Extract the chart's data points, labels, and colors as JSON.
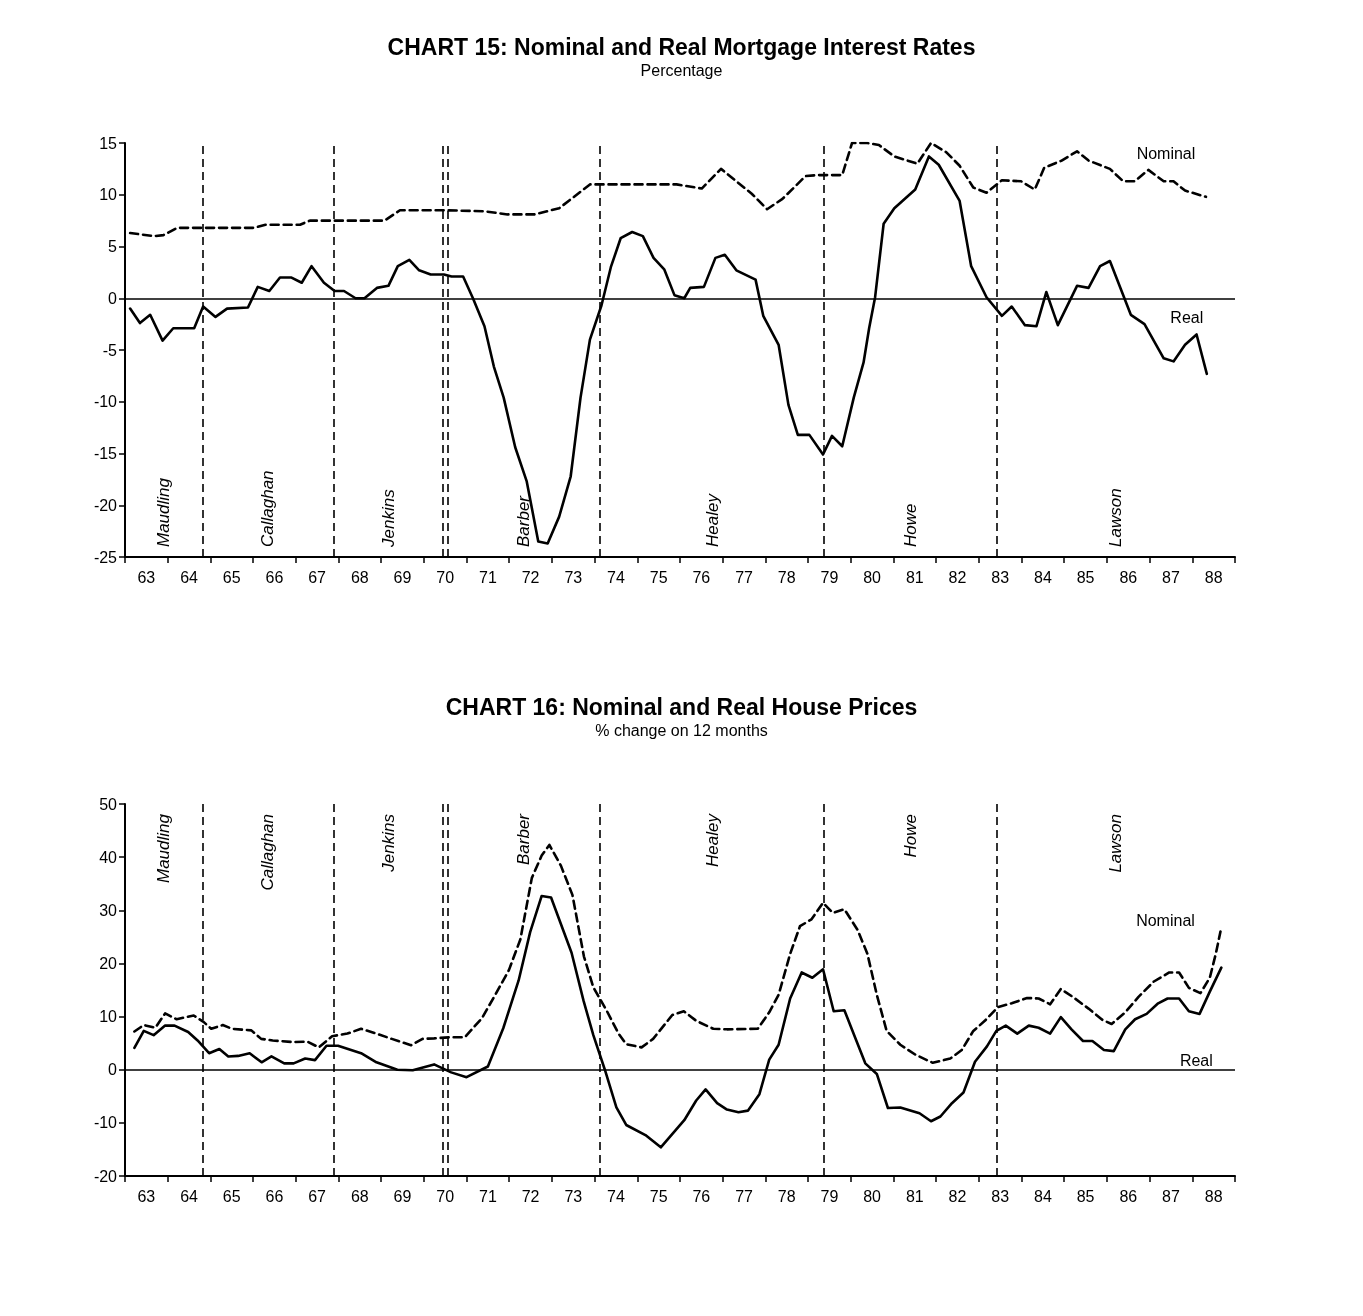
{
  "chart_data": [
    {
      "type": "line",
      "title": "CHART 15: Nominal and Real Mortgage Interest Rates",
      "subtitle": "Percentage",
      "xlim": [
        63,
        89
      ],
      "ylim": [
        -25,
        15
      ],
      "yticks": [
        -25,
        -20,
        -15,
        -10,
        -5,
        0,
        5,
        10,
        15
      ],
      "marker": "none",
      "xticks": [
        {
          "value": 63,
          "label": null
        },
        {
          "value": 63.5,
          "label": "63"
        },
        {
          "value": 64,
          "label": null
        },
        {
          "value": 64.5,
          "label": "64"
        },
        {
          "value": 65,
          "label": null
        },
        {
          "value": 65.5,
          "label": "65"
        },
        {
          "value": 66,
          "label": null
        },
        {
          "value": 66.5,
          "label": "66"
        },
        {
          "value": 67,
          "label": null
        },
        {
          "value": 67.5,
          "label": "67"
        },
        {
          "value": 68,
          "label": null
        },
        {
          "value": 68.5,
          "label": "68"
        },
        {
          "value": 69,
          "label": null
        },
        {
          "value": 69.5,
          "label": "69"
        },
        {
          "value": 70,
          "label": null
        },
        {
          "value": 70.5,
          "label": "70"
        },
        {
          "value": 71,
          "label": null
        },
        {
          "value": 71.5,
          "label": "71"
        },
        {
          "value": 72,
          "label": null
        },
        {
          "value": 72.5,
          "label": "72"
        },
        {
          "value": 73,
          "label": null
        },
        {
          "value": 73.5,
          "label": "73"
        },
        {
          "value": 74,
          "label": null
        },
        {
          "value": 74.5,
          "label": "74"
        },
        {
          "value": 75,
          "label": null
        },
        {
          "value": 75.5,
          "label": "75"
        },
        {
          "value": 76,
          "label": null
        },
        {
          "value": 76.5,
          "label": "76"
        },
        {
          "value": 77,
          "label": null
        },
        {
          "value": 77.5,
          "label": "77"
        },
        {
          "value": 78,
          "label": null
        },
        {
          "value": 78.5,
          "label": "78"
        },
        {
          "value": 79,
          "label": null
        },
        {
          "value": 79.5,
          "label": "79"
        },
        {
          "value": 80,
          "label": null
        },
        {
          "value": 80.5,
          "label": "80"
        },
        {
          "value": 81,
          "label": null
        },
        {
          "value": 81.5,
          "label": "81"
        },
        {
          "value": 82,
          "label": null
        },
        {
          "value": 82.5,
          "label": "82"
        },
        {
          "value": 83,
          "label": null
        },
        {
          "value": 83.5,
          "label": "83"
        },
        {
          "value": 84,
          "label": null
        },
        {
          "value": 84.5,
          "label": "84"
        },
        {
          "value": 85,
          "label": null
        },
        {
          "value": 85.5,
          "label": "85"
        },
        {
          "value": 86,
          "label": null
        },
        {
          "value": 86.5,
          "label": "86"
        },
        {
          "value": 87,
          "label": null
        },
        {
          "value": 87.5,
          "label": "87"
        },
        {
          "value": 88,
          "label": null
        },
        {
          "value": 88.5,
          "label": "88"
        },
        {
          "value": 89,
          "label": null
        }
      ],
      "series": [
        {
          "name": "Nominal",
          "color": "#000000",
          "line_style": "dashed",
          "x": [
            63.12,
            63.68,
            63.9,
            64.22,
            64.62,
            64.85,
            66.02,
            66.29,
            67.1,
            67.33,
            69.08,
            69.44,
            69.89,
            70.52,
            71.42,
            71.96,
            72.59,
            73.17,
            73.58,
            73.89,
            74.3,
            75.92,
            76.51,
            76.96,
            77.32,
            77.68,
            78.04,
            78.4,
            78.94,
            79.22,
            79.8,
            80.03,
            80.39,
            80.66,
            81.02,
            81.56,
            81.88,
            82.24,
            82.55,
            82.87,
            83.18,
            83.54,
            83.99,
            84.31,
            84.53,
            84.94,
            85.3,
            85.57,
            86.07,
            86.38,
            86.65,
            86.97,
            87.33,
            87.56,
            87.83,
            88.32
          ],
          "values": [
            6.3,
            6.0,
            6.1,
            6.8,
            6.8,
            6.8,
            6.8,
            7.1,
            7.1,
            7.5,
            7.5,
            8.5,
            8.5,
            8.5,
            8.4,
            8.1,
            8.1,
            8.7,
            10.0,
            11.0,
            11.0,
            11.0,
            10.6,
            12.5,
            11.3,
            10.1,
            8.6,
            9.6,
            11.8,
            11.9,
            11.9,
            15.0,
            15.0,
            14.8,
            13.7,
            13.0,
            15.0,
            14.1,
            12.8,
            10.7,
            10.2,
            11.4,
            11.3,
            10.5,
            12.6,
            13.3,
            14.2,
            13.3,
            12.5,
            11.3,
            11.3,
            12.4,
            11.3,
            11.3,
            10.4,
            9.8
          ]
        },
        {
          "name": "Real",
          "color": "#000000",
          "line_style": "solid",
          "x": [
            63.12,
            63.35,
            63.59,
            63.88,
            64.13,
            64.62,
            64.83,
            65.12,
            65.39,
            65.88,
            66.11,
            66.38,
            66.63,
            66.9,
            67.14,
            67.37,
            67.66,
            67.91,
            68.13,
            68.4,
            68.61,
            68.9,
            69.17,
            69.39,
            69.66,
            69.89,
            70.16,
            70.47,
            70.65,
            70.92,
            71.15,
            71.42,
            71.64,
            71.87,
            72.14,
            72.41,
            72.68,
            72.9,
            73.17,
            73.44,
            73.67,
            73.89,
            74.16,
            74.38,
            74.61,
            74.88,
            75.13,
            75.38,
            75.63,
            75.87,
            76.1,
            76.24,
            76.56,
            76.83,
            77.05,
            77.32,
            77.77,
            77.95,
            78.31,
            78.54,
            78.76,
            79.03,
            79.35,
            79.56,
            79.8,
            80.07,
            80.3,
            80.43,
            80.57,
            80.77,
            81.02,
            81.51,
            81.83,
            82.06,
            82.55,
            82.82,
            83.18,
            83.54,
            83.77,
            84.08,
            84.35,
            84.58,
            84.85,
            85.3,
            85.57,
            85.84,
            86.07,
            86.56,
            86.88,
            87.33,
            87.56,
            87.83,
            88.1,
            88.34
          ],
          "values": [
            -1.0,
            -2.4,
            -1.6,
            -4.1,
            -2.9,
            -2.9,
            -0.8,
            -1.8,
            -1.0,
            -0.9,
            1.1,
            0.7,
            2.0,
            2.0,
            1.5,
            3.1,
            1.5,
            0.7,
            0.7,
            0,
            0,
            1.0,
            1.2,
            3.1,
            3.7,
            2.7,
            2.3,
            2.3,
            2.1,
            2.1,
            0,
            -2.7,
            -6.6,
            -9.6,
            -14.4,
            -17.7,
            -23.5,
            -23.7,
            -21.1,
            -17.2,
            -9.6,
            -4.0,
            -0.7,
            3.0,
            5.8,
            6.4,
            6.0,
            3.9,
            2.8,
            0.3,
            0,
            1.0,
            1.1,
            3.9,
            4.2,
            2.7,
            1.8,
            -1.7,
            -4.5,
            -10.3,
            -13.2,
            -13.2,
            -15.1,
            -13.3,
            -14.3,
            -9.6,
            -6.2,
            -2.9,
            0.1,
            7.2,
            8.7,
            10.5,
            13.7,
            12.9,
            9.4,
            3.1,
            0.1,
            -1.7,
            -0.8,
            -2.6,
            -2.7,
            0.6,
            -2.6,
            1.2,
            1.0,
            3.1,
            3.6,
            -1.6,
            -2.5,
            -5.8,
            -6.1,
            -4.5,
            -3.5,
            -7.3
          ]
        }
      ],
      "ref_lines": [
        {
          "axis": "y",
          "value": 0,
          "line_style": "solid"
        },
        {
          "axis": "x",
          "value": 64.81,
          "line_style": "dashed"
        },
        {
          "axis": "x",
          "value": 67.88,
          "line_style": "dashed"
        },
        {
          "axis": "x",
          "value": 70.45,
          "line_style": "dashed"
        },
        {
          "axis": "x",
          "value": 70.55,
          "line_style": "dashed"
        },
        {
          "axis": "x",
          "value": 74.13,
          "line_style": "dashed"
        },
        {
          "axis": "x",
          "value": 79.37,
          "line_style": "dashed"
        },
        {
          "axis": "x",
          "value": 83.42,
          "line_style": "dashed"
        }
      ],
      "annotations": [
        "Maudling",
        "Callaghan",
        "Jenkins",
        "Barber",
        "Healey",
        "Howe",
        "Lawson"
      ]
    },
    {
      "type": "line",
      "title": "CHART 16: Nominal and Real House Prices",
      "subtitle": "% change on 12 months",
      "xlim": [
        63,
        89
      ],
      "ylim": [
        -20,
        50
      ],
      "yticks": [
        -20,
        -10,
        0,
        10,
        20,
        30,
        40,
        50
      ],
      "marker": "none",
      "xticks": [
        {
          "value": 63,
          "label": null
        },
        {
          "value": 63.5,
          "label": "63"
        },
        {
          "value": 64,
          "label": null
        },
        {
          "value": 64.5,
          "label": "64"
        },
        {
          "value": 65,
          "label": null
        },
        {
          "value": 65.5,
          "label": "65"
        },
        {
          "value": 66,
          "label": null
        },
        {
          "value": 66.5,
          "label": "66"
        },
        {
          "value": 67,
          "label": null
        },
        {
          "value": 67.5,
          "label": "67"
        },
        {
          "value": 68,
          "label": null
        },
        {
          "value": 68.5,
          "label": "68"
        },
        {
          "value": 69,
          "label": null
        },
        {
          "value": 69.5,
          "label": "69"
        },
        {
          "value": 70,
          "label": null
        },
        {
          "value": 70.5,
          "label": "70"
        },
        {
          "value": 71,
          "label": null
        },
        {
          "value": 71.5,
          "label": "71"
        },
        {
          "value": 72,
          "label": null
        },
        {
          "value": 72.5,
          "label": "72"
        },
        {
          "value": 73,
          "label": null
        },
        {
          "value": 73.5,
          "label": "73"
        },
        {
          "value": 74,
          "label": null
        },
        {
          "value": 74.5,
          "label": "74"
        },
        {
          "value": 75,
          "label": null
        },
        {
          "value": 75.5,
          "label": "75"
        },
        {
          "value": 76,
          "label": null
        },
        {
          "value": 76.5,
          "label": "76"
        },
        {
          "value": 77,
          "label": null
        },
        {
          "value": 77.5,
          "label": "77"
        },
        {
          "value": 78,
          "label": null
        },
        {
          "value": 78.5,
          "label": "78"
        },
        {
          "value": 79,
          "label": null
        },
        {
          "value": 79.5,
          "label": "79"
        },
        {
          "value": 80,
          "label": null
        },
        {
          "value": 80.5,
          "label": "80"
        },
        {
          "value": 81,
          "label": null
        },
        {
          "value": 81.5,
          "label": "81"
        },
        {
          "value": 82,
          "label": null
        },
        {
          "value": 82.5,
          "label": "82"
        },
        {
          "value": 83,
          "label": null
        },
        {
          "value": 83.5,
          "label": "83"
        },
        {
          "value": 84,
          "label": null
        },
        {
          "value": 84.5,
          "label": "84"
        },
        {
          "value": 85,
          "label": null
        },
        {
          "value": 85.5,
          "label": "85"
        },
        {
          "value": 86,
          "label": null
        },
        {
          "value": 86.5,
          "label": "86"
        },
        {
          "value": 87,
          "label": null
        },
        {
          "value": 87.5,
          "label": "87"
        },
        {
          "value": 88,
          "label": null
        },
        {
          "value": 88.5,
          "label": "88"
        },
        {
          "value": 89,
          "label": null
        }
      ],
      "series": [
        {
          "name": "Nominal",
          "color": "#000000",
          "line_style": "dashed",
          "x": [
            63.22,
            63.44,
            63.71,
            63.94,
            64.21,
            64.61,
            64.84,
            65.02,
            65.29,
            65.51,
            65.96,
            66.19,
            66.46,
            66.95,
            67.27,
            67.54,
            67.85,
            68.21,
            68.53,
            68.89,
            69.25,
            69.7,
            69.97,
            70.24,
            70.6,
            70.96,
            71.36,
            71.68,
            71.99,
            72.26,
            72.53,
            72.76,
            72.94,
            73.21,
            73.48,
            73.75,
            73.97,
            74.29,
            74.56,
            74.74,
            75.1,
            75.37,
            75.82,
            76.09,
            76.38,
            76.78,
            77.1,
            77.82,
            78.09,
            78.31,
            78.58,
            78.81,
            79.08,
            79.35,
            79.58,
            79.85,
            80.16,
            80.39,
            80.61,
            80.84,
            81.16,
            81.52,
            81.92,
            82.33,
            82.6,
            82.87,
            83.14,
            83.45,
            83.77,
            84.13,
            84.4,
            84.67,
            84.92,
            85.2,
            85.57,
            85.89,
            86.11,
            86.43,
            86.74,
            87.1,
            87.46,
            87.69,
            87.92,
            88.19,
            88.41,
            88.55,
            88.66
          ],
          "values": [
            7.2,
            8.4,
            7.9,
            10.6,
            9.5,
            10.2,
            9.0,
            7.7,
            8.4,
            7.7,
            7.4,
            5.8,
            5.5,
            5.2,
            5.3,
            4.2,
            6.3,
            6.8,
            7.7,
            6.8,
            5.8,
            4.6,
            5.8,
            5.9,
            6.1,
            6.1,
            9.7,
            14.2,
            18.7,
            24.5,
            36.1,
            40.3,
            42.3,
            38.4,
            32.9,
            21.3,
            15.5,
            11.0,
            6.8,
            4.8,
            4.2,
            5.8,
            10.3,
            11.0,
            9.2,
            7.7,
            7.6,
            7.7,
            10.8,
            14.1,
            21.8,
            27.0,
            28.3,
            31.4,
            29.5,
            30.2,
            26.3,
            21.8,
            14.1,
            7.3,
            4.7,
            2.8,
            1.3,
            2.1,
            3.7,
            7.3,
            9.2,
            11.8,
            12.5,
            13.5,
            13.4,
            12.3,
            15.2,
            13.7,
            11.5,
            9.4,
            8.6,
            10.8,
            13.7,
            16.6,
            18.3,
            18.3,
            15.4,
            14.4,
            17.3,
            21.8,
            26.0
          ]
        },
        {
          "name": "Real",
          "color": "#000000",
          "line_style": "solid",
          "x": [
            63.22,
            63.44,
            63.67,
            63.94,
            64.16,
            64.48,
            64.7,
            64.97,
            65.21,
            65.42,
            65.65,
            65.92,
            66.2,
            66.43,
            66.73,
            66.95,
            67.22,
            67.45,
            67.72,
            67.99,
            68.53,
            68.89,
            69.38,
            69.74,
            70.24,
            70.64,
            71.0,
            71.5,
            71.86,
            72.22,
            72.49,
            72.76,
            72.98,
            73.46,
            73.74,
            73.97,
            74.24,
            74.51,
            74.74,
            75.19,
            75.55,
            76.1,
            76.38,
            76.6,
            76.87,
            77.1,
            77.37,
            77.59,
            77.86,
            78.09,
            78.31,
            78.58,
            78.85,
            79.1,
            79.35,
            79.6,
            79.85,
            80.12,
            80.34,
            80.61,
            80.87,
            81.16,
            81.61,
            81.88,
            82.1,
            82.37,
            82.64,
            82.91,
            83.19,
            83.41,
            83.63,
            83.9,
            84.17,
            84.4,
            84.67,
            84.92,
            85.17,
            85.44,
            85.66,
            85.93,
            86.16,
            86.43,
            86.66,
            86.93,
            87.2,
            87.42,
            87.69,
            87.92,
            88.17,
            88.41,
            88.68
          ],
          "values": [
            4.1,
            7.3,
            6.5,
            8.3,
            8.3,
            7.1,
            5.5,
            3.1,
            3.9,
            2.5,
            2.6,
            3.1,
            1.4,
            2.5,
            1.2,
            1.2,
            2.1,
            1.8,
            4.5,
            4.5,
            3.1,
            1.4,
            0,
            -0.1,
            1.0,
            -0.5,
            -1.4,
            0.6,
            7.8,
            16.8,
            25.9,
            32.7,
            32.4,
            22.0,
            13.0,
            6.5,
            0,
            -7.1,
            -10.4,
            -12.3,
            -14.6,
            -9.5,
            -5.8,
            -3.7,
            -6.3,
            -7.5,
            -8.0,
            -7.7,
            -4.6,
            1.9,
            4.7,
            13.4,
            18.3,
            17.3,
            18.9,
            11.0,
            11.2,
            5.7,
            1.2,
            -0.8,
            -7.2,
            -7.1,
            -8.2,
            -9.7,
            -8.8,
            -6.3,
            -4.3,
            1.5,
            4.4,
            7.3,
            8.3,
            6.8,
            8.3,
            7.9,
            6.8,
            9.9,
            7.6,
            5.4,
            5.4,
            3.7,
            3.5,
            7.6,
            9.5,
            10.5,
            12.5,
            13.4,
            13.4,
            11.0,
            10.5,
            14.7,
            19.2
          ]
        }
      ],
      "ref_lines": [
        {
          "axis": "y",
          "value": 0,
          "line_style": "solid"
        },
        {
          "axis": "x",
          "value": 64.81,
          "line_style": "dashed"
        },
        {
          "axis": "x",
          "value": 67.88,
          "line_style": "dashed"
        },
        {
          "axis": "x",
          "value": 70.45,
          "line_style": "dashed"
        },
        {
          "axis": "x",
          "value": 70.55,
          "line_style": "dashed"
        },
        {
          "axis": "x",
          "value": 74.13,
          "line_style": "dashed"
        },
        {
          "axis": "x",
          "value": 79.37,
          "line_style": "dashed"
        },
        {
          "axis": "x",
          "value": 83.42,
          "line_style": "dashed"
        }
      ],
      "annotations": [
        "Maudling",
        "Callaghan",
        "Jenkins",
        "Barber",
        "Healey",
        "Howe",
        "Lawson"
      ]
    }
  ]
}
